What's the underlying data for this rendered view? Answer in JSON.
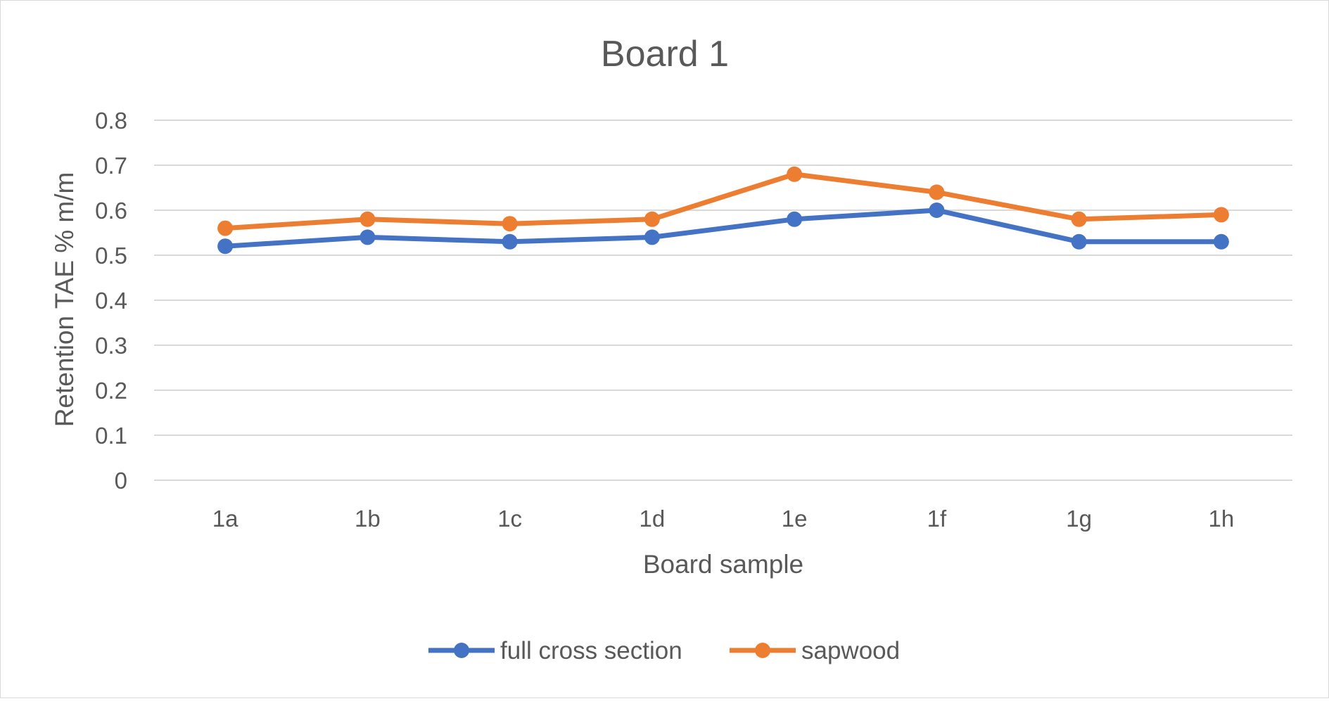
{
  "chart_data": {
    "type": "line",
    "title": "Board 1",
    "xlabel": "Board sample",
    "ylabel": "Retention TAE % m/m",
    "categories": [
      "1a",
      "1b",
      "1c",
      "1d",
      "1e",
      "1f",
      "1g",
      "1h"
    ],
    "ylim": [
      0,
      0.8
    ],
    "yticks": [
      "0",
      "0.1",
      "0.2",
      "0.3",
      "0.4",
      "0.5",
      "0.6",
      "0.7",
      "0.8"
    ],
    "grid": true,
    "legend_position": "bottom",
    "series": [
      {
        "name": "full cross section",
        "color": "#4472C4",
        "marker": "circle",
        "values": [
          0.52,
          0.54,
          0.53,
          0.54,
          0.58,
          0.6,
          0.53,
          0.53
        ]
      },
      {
        "name": "sapwood",
        "color": "#ED7D31",
        "marker": "circle",
        "values": [
          0.56,
          0.58,
          0.57,
          0.58,
          0.68,
          0.64,
          0.58,
          0.59
        ]
      }
    ]
  }
}
